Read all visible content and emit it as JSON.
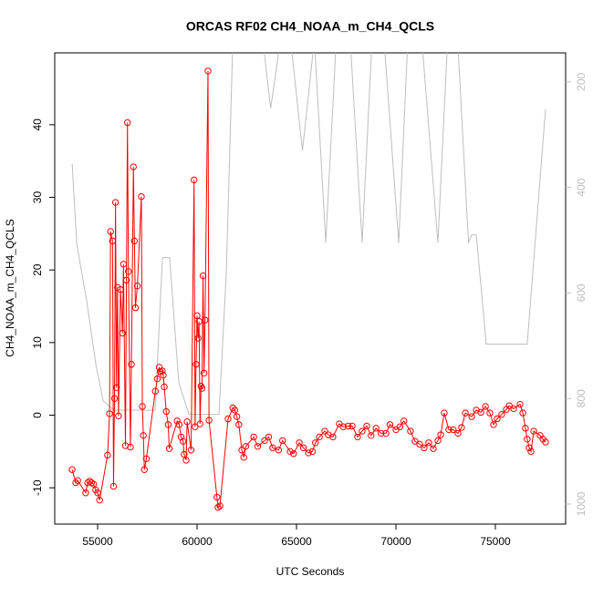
{
  "chart_data": {
    "type": "line",
    "title": "ORCAS RF02 CH4_NOAA_m_CH4_QCLS",
    "x_label": "UTC Seconds",
    "y_label": "CH4_NOAA_m_CH4_QCLS",
    "xlim": [
      52844,
      78532
    ],
    "xticks": [
      55000,
      60000,
      65000,
      70000,
      75000
    ],
    "ylim": [
      -15,
      49.9
    ],
    "yticks": [
      -10,
      0,
      10,
      20,
      30,
      40
    ],
    "y2lim": [
      1038,
      145
    ],
    "y2ticks": [
      200,
      400,
      600,
      800,
      1000
    ],
    "series": [
      {
        "color": "#bebebe",
        "axis": "y2",
        "marker": false,
        "x": [
          53720,
          53950,
          54450,
          54910,
          55280,
          55830,
          57890,
          58260,
          58620,
          59080,
          59590,
          61100,
          61470,
          61800,
          62300,
          62800,
          63300,
          63700,
          64200,
          64700,
          65300,
          65900,
          66470,
          67000,
          67700,
          68300,
          68800,
          69400,
          70140,
          70600,
          71300,
          72110,
          72600,
          73100,
          73650,
          73800,
          74040,
          74540,
          76600,
          77520
        ],
        "values": [
          355,
          507,
          615,
          735,
          805,
          822,
          822,
          533,
          533,
          770,
          830,
          830,
          563,
          120,
          120,
          130,
          120,
          250,
          120,
          120,
          330,
          120,
          505,
          120,
          120,
          505,
          120,
          120,
          505,
          120,
          120,
          505,
          120,
          120,
          505,
          490,
          490,
          697,
          697,
          252
        ]
      },
      {
        "color": "#ff0000",
        "marker": true,
        "x": [
          53720,
          53900,
          54000,
          54400,
          54500,
          54600,
          54700,
          54800,
          54900,
          55000,
          55100,
          55500,
          55600,
          55650,
          55750,
          55800,
          55850,
          55900,
          55950,
          56000,
          56050,
          56150,
          56250,
          56300,
          56400,
          56450,
          56500,
          56550,
          56650,
          56700,
          56800,
          56850,
          56900,
          57000,
          57200,
          57250,
          57300,
          57350,
          57450,
          57900,
          58000,
          58100,
          58150,
          58250,
          58300,
          58350,
          58450,
          58550,
          58600,
          59000,
          59100,
          59200,
          59300,
          59350,
          59450,
          59500,
          59700,
          59850,
          59900,
          59950,
          60000,
          60050,
          60100,
          60150,
          60200,
          60250,
          60300,
          60350,
          60400,
          60550,
          60600,
          61000,
          61050,
          61150,
          61560,
          61800,
          61900,
          62000,
          62100,
          62250,
          62350,
          62450,
          62850,
          63050,
          63400,
          63600,
          63800,
          64100,
          64300,
          64680,
          64850,
          65140,
          65350,
          65600,
          65800,
          65950,
          66150,
          66420,
          66600,
          66830,
          67150,
          67350,
          67600,
          67800,
          68070,
          68300,
          68530,
          68750,
          69000,
          69250,
          69500,
          69700,
          70000,
          70200,
          70400,
          70730,
          70960,
          71190,
          71420,
          71650,
          71880,
          72110,
          72250,
          72430,
          72660,
          72880,
          73120,
          73300,
          73490,
          73810,
          74040,
          74270,
          74500,
          74720,
          74910,
          75090,
          75320,
          75550,
          75700,
          75920,
          76240,
          76380,
          76510,
          76600,
          76700,
          76790,
          76930,
          77250,
          77390,
          77520
        ],
        "values": [
          -7.5,
          -9.3,
          -9.0,
          -10.7,
          -9.3,
          -9.1,
          -9.3,
          -9.5,
          -10.3,
          -10.7,
          -11.7,
          -5.5,
          0.2,
          25.3,
          24.0,
          -9.8,
          2.3,
          29.3,
          3.8,
          17.6,
          -0.1,
          17.3,
          11.3,
          20.8,
          -4.2,
          18.6,
          40.3,
          19.8,
          -4.4,
          7.0,
          34.2,
          24.0,
          14.8,
          17.8,
          30.1,
          1.2,
          -2.8,
          -7.5,
          -6.0,
          3.3,
          5.0,
          6.6,
          6.0,
          6.1,
          5.5,
          3.9,
          0.5,
          -1.3,
          -4.6,
          -0.8,
          -1.3,
          -3.0,
          -3.6,
          -5.4,
          -6.2,
          -0.9,
          -4.8,
          32.4,
          -1.6,
          7.0,
          13.7,
          10.6,
          12.9,
          -1.2,
          4.0,
          3.7,
          19.2,
          5.8,
          13.1,
          47.4,
          -0.7,
          -11.3,
          -12.7,
          -12.5,
          -0.5,
          1.0,
          0.7,
          -0.2,
          -1.3,
          -4.8,
          -5.8,
          -4.3,
          -3.0,
          -4.3,
          -3.5,
          -3.0,
          -4.5,
          -4.8,
          -3.5,
          -5.0,
          -5.3,
          -3.8,
          -4.5,
          -5.2,
          -5.0,
          -3.8,
          -3.0,
          -2.2,
          -2.7,
          -3.0,
          -1.2,
          -1.6,
          -1.5,
          -1.5,
          -3.0,
          -2.2,
          -1.5,
          -2.8,
          -1.8,
          -2.5,
          -2.5,
          -1.3,
          -2.0,
          -1.6,
          -0.8,
          -2.2,
          -3.6,
          -4.0,
          -4.5,
          -3.8,
          -4.6,
          -3.5,
          -2.7,
          0.3,
          -2.0,
          -2.0,
          -2.5,
          -1.7,
          0.3,
          -0.2,
          0.7,
          0.4,
          1.2,
          0.3,
          -1.3,
          -0.5,
          0.1,
          0.8,
          1.3,
          0.9,
          1.5,
          0.3,
          -1.8,
          -3.3,
          -4.5,
          -5.0,
          -2.2,
          -2.8,
          -3.3,
          -3.7
        ]
      }
    ]
  }
}
